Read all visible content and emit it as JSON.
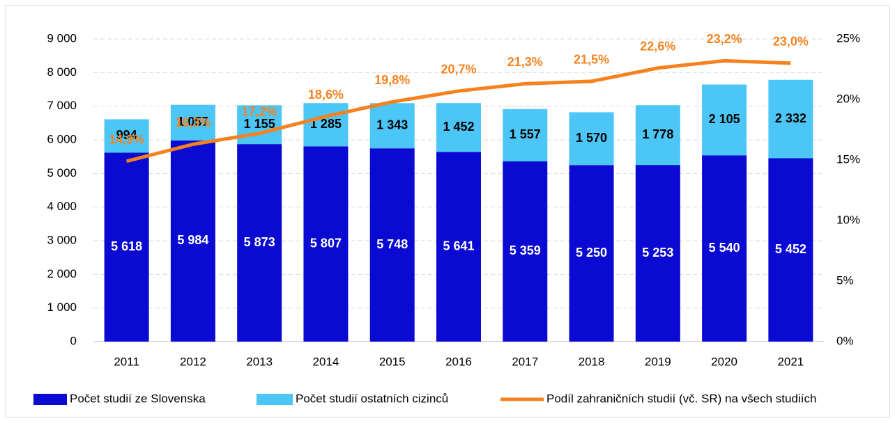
{
  "chart_data": {
    "type": "bar",
    "categories": [
      "2011",
      "2012",
      "2013",
      "2014",
      "2015",
      "2016",
      "2017",
      "2018",
      "2019",
      "2020",
      "2021"
    ],
    "stacked": true,
    "series": [
      {
        "name": "Počet studií ze Slovenska",
        "color": "#0a0ad2",
        "values": [
          5618,
          5984,
          5873,
          5807,
          5748,
          5641,
          5359,
          5250,
          5253,
          5540,
          5452
        ],
        "value_labels": [
          "5 618",
          "5 984",
          "5 873",
          "5 807",
          "5 748",
          "5 641",
          "5 359",
          "5 250",
          "5 253",
          "5 540",
          "5 452"
        ]
      },
      {
        "name": "Počet studií ostatních cizinců",
        "color": "#4cc6f6",
        "values": [
          994,
          1057,
          1155,
          1285,
          1343,
          1452,
          1557,
          1570,
          1778,
          2105,
          2332
        ],
        "value_labels": [
          "994",
          "1 057",
          "1 155",
          "1 285",
          "1 343",
          "1 452",
          "1 557",
          "1 570",
          "1 778",
          "2 105",
          "2 332"
        ]
      },
      {
        "name": "Podíl zahraničních studií (vč. SR) na všech studiích",
        "color": "#f5821f",
        "type": "line",
        "axis": "y2",
        "values": [
          14.9,
          16.3,
          17.2,
          18.6,
          19.8,
          20.7,
          21.3,
          21.5,
          22.6,
          23.2,
          23.0
        ],
        "value_labels": [
          "14,9%",
          "16,3%",
          "17,2%",
          "18,6%",
          "19,8%",
          "20,7%",
          "21,3%",
          "21,5%",
          "22,6%",
          "23,2%",
          "23,0%"
        ]
      }
    ],
    "ylim": [
      0,
      9000
    ],
    "yticks": [
      0,
      {
        "value": 1000,
        "label": "1 000"
      },
      {
        "value": 2000,
        "label": "2 000"
      },
      {
        "value": 3000,
        "label": "3 000"
      },
      {
        "value": 4000,
        "label": "4 000"
      },
      {
        "value": 5000,
        "label": "5 000"
      },
      {
        "value": 6000,
        "label": "6 000"
      },
      {
        "value": 7000,
        "label": "7 000"
      },
      {
        "value": 8000,
        "label": "8 000"
      },
      {
        "value": 9000,
        "label": "9 000"
      }
    ],
    "y2lim": [
      0,
      25
    ],
    "y2ticks": [
      {
        "value": 0,
        "label": "0%"
      },
      {
        "value": 5,
        "label": "5%"
      },
      {
        "value": 10,
        "label": "10%"
      },
      {
        "value": 15,
        "label": "15%"
      },
      {
        "value": 20,
        "label": "20%"
      },
      {
        "value": 25,
        "label": "25%"
      }
    ],
    "grid": true,
    "legend": "bottom"
  }
}
